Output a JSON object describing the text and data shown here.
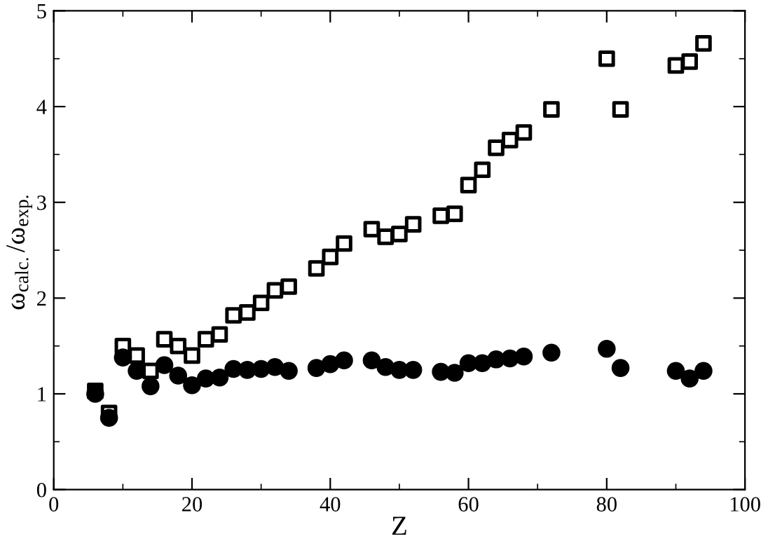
{
  "chart_data": {
    "type": "scatter",
    "xlabel": "Z",
    "ylabel": "ω$_{calc.}$/ω$_{exp.}$",
    "xlim": [
      0,
      100
    ],
    "ylim": [
      0,
      5
    ],
    "xticks": [
      0,
      20,
      40,
      60,
      80,
      100
    ],
    "yticks": [
      0,
      1,
      2,
      3,
      4,
      5
    ],
    "grid": false,
    "x": [
      6,
      8,
      10,
      12,
      14,
      16,
      18,
      20,
      22,
      24,
      26,
      28,
      30,
      32,
      34,
      38,
      40,
      42,
      46,
      48,
      50,
      52,
      56,
      58,
      60,
      62,
      64,
      66,
      68,
      72,
      80,
      82,
      90,
      92,
      94
    ],
    "series": [
      {
        "color": "#000000",
        "marker": "square",
        "values": [
          1.03,
          0.8,
          1.5,
          1.4,
          1.24,
          1.57,
          1.5,
          1.4,
          1.57,
          1.62,
          1.82,
          1.85,
          1.95,
          2.08,
          2.12,
          2.31,
          2.43,
          2.57,
          2.72,
          2.64,
          2.67,
          2.77,
          2.86,
          2.88,
          3.18,
          3.34,
          3.57,
          3.65,
          3.73,
          3.97,
          4.5,
          3.97,
          4.43,
          4.47,
          4.66
        ]
      },
      {
        "color": "#000000",
        "marker": "circle",
        "values": [
          1.0,
          0.75,
          1.38,
          1.24,
          1.08,
          1.3,
          1.19,
          1.09,
          1.16,
          1.17,
          1.26,
          1.25,
          1.26,
          1.28,
          1.24,
          1.27,
          1.31,
          1.35,
          1.35,
          1.28,
          1.25,
          1.25,
          1.23,
          1.22,
          1.32,
          1.32,
          1.36,
          1.37,
          1.39,
          1.43,
          1.47,
          1.27,
          1.24,
          1.16,
          1.24
        ]
      }
    ]
  }
}
